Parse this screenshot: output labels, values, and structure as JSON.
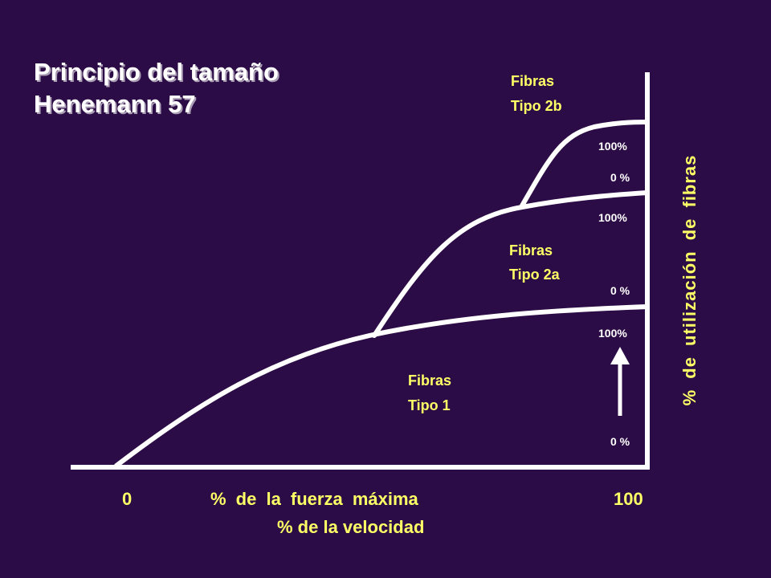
{
  "title": [
    "Principio del tamaño",
    "Henemann 57"
  ],
  "x_axis": {
    "start": "0",
    "label": "% de la fuerza máxima",
    "sublabel": "% de la velocidad",
    "end": "100"
  },
  "y_axis_label": "% de utilización de fibras",
  "fibers": [
    {
      "line1": "Fibras",
      "line2": "Tipo 2b",
      "top": "100%",
      "bottom": "0 %"
    },
    {
      "line1": "Fibras",
      "line2": "Tipo 2a",
      "top": "100%",
      "bottom": "0 %"
    },
    {
      "line1": "Fibras",
      "line2": "Tipo 1",
      "top": "100%",
      "bottom": "0 %"
    }
  ]
}
